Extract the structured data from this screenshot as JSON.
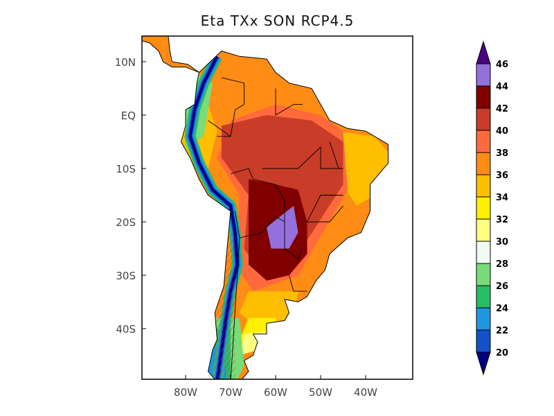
{
  "title": "Eta TXx SON RCP4.5",
  "map": {
    "lon_range": [
      "90W",
      "30W"
    ],
    "lat_range": [
      "15N",
      "50S"
    ],
    "lat_ticks": [
      "10N",
      "EQ",
      "10S",
      "20S",
      "30S",
      "40S"
    ],
    "lon_ticks": [
      "80W",
      "70W",
      "60W",
      "50W",
      "40W"
    ],
    "hatching": "red diagonal hatching over southern Andes"
  },
  "colorbar": {
    "levels": [
      "20",
      "22",
      "24",
      "26",
      "28",
      "30",
      "32",
      "34",
      "36",
      "38",
      "40",
      "42",
      "44",
      "46"
    ],
    "colors": [
      "#000080",
      "#1450c8",
      "#1e96e0",
      "#28be64",
      "#78dc78",
      "#f0faf0",
      "#ffff80",
      "#fff000",
      "#ffbe00",
      "#ff8c14",
      "#ff6a3c",
      "#c83c28",
      "#800000",
      "#9370dc",
      "#4b0082"
    ]
  }
}
